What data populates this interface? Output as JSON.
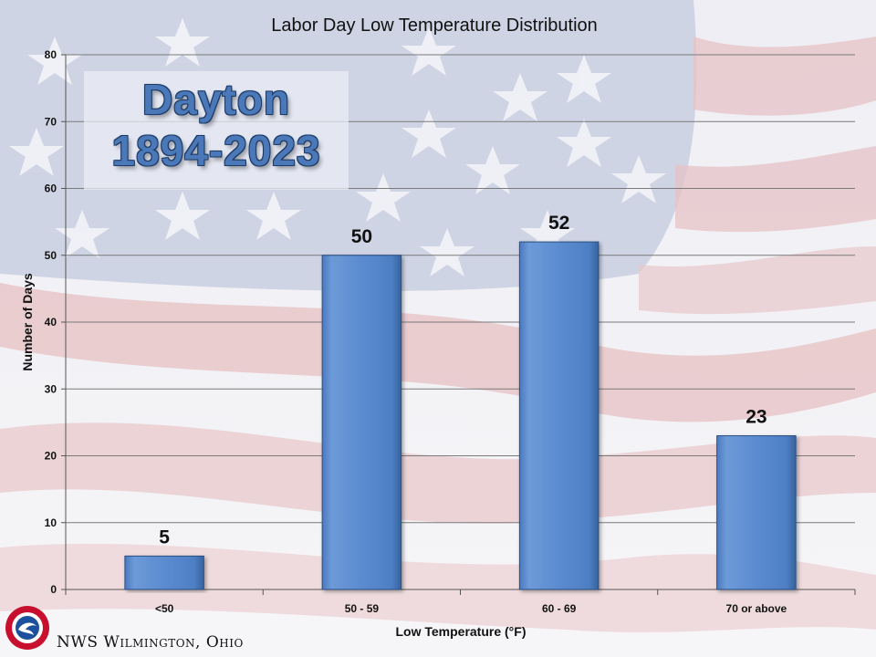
{
  "chart_data": {
    "type": "bar",
    "title": "Labor Day Low Temperature Distribution",
    "xlabel": "Low Temperature (°F)",
    "ylabel": "Number of Days",
    "categories": [
      "<50",
      "50 - 59",
      "60 - 69",
      "70 or above"
    ],
    "values": [
      5,
      50,
      52,
      23
    ],
    "ylim": [
      0,
      80
    ],
    "yticks": [
      0,
      10,
      20,
      30,
      40,
      50,
      60,
      70,
      80
    ],
    "ytick_labels": [
      "0",
      "10",
      "20",
      "30",
      "40",
      "50",
      "60",
      "70",
      "80"
    ],
    "data_labels": [
      "5",
      "50",
      "52",
      "23"
    ],
    "grid": true,
    "legend": "none",
    "bar_color": "#5b8bd0"
  },
  "inset": {
    "title": "Dayton",
    "subtitle": "1894-2023"
  },
  "footer": {
    "source": "NWS Wilmington, Ohio",
    "logo_icon": "nws-logo-icon"
  }
}
